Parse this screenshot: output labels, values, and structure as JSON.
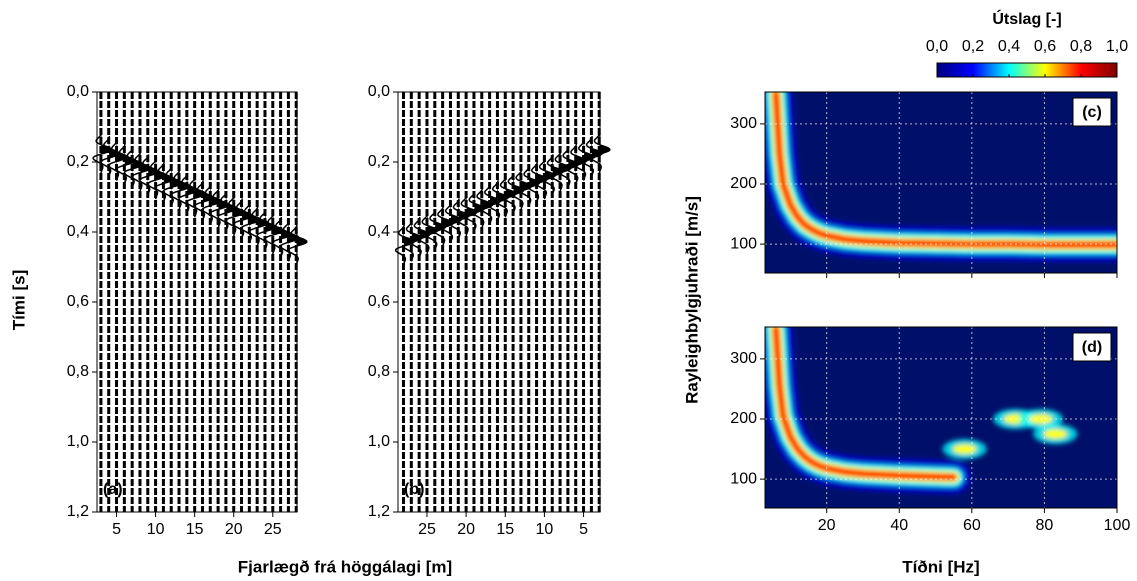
{
  "figure": {
    "seismic_x_label": "Fjarlægð frá höggálagi [m]",
    "seismic_y_label": "Tími [s]",
    "dispersion_x_label": "Tíðni [Hz]",
    "dispersion_y_label": "Rayleighbylgjuhraði [m/s]",
    "colorbar": {
      "title": "Útslag [-]",
      "lim": [
        0,
        1
      ],
      "ticks": [
        {
          "value": 0,
          "label": "0,0"
        },
        {
          "value": 0.2,
          "label": "0,2"
        },
        {
          "value": 0.4,
          "label": "0,4"
        },
        {
          "value": 0.6,
          "label": "0,6"
        },
        {
          "value": 0.8,
          "label": "0,8"
        },
        {
          "value": 1,
          "label": "1,0"
        }
      ],
      "colormap": [
        "#00007f",
        "#0000ff",
        "#00ffff",
        "#ffff00",
        "#ff0000",
        "#7f0000"
      ]
    }
  },
  "chart_data": [
    {
      "type": "seismogram",
      "panel_label": "(a)",
      "xlim": [
        2.5,
        28.1
      ],
      "ylim": [
        0,
        1.2
      ],
      "xticks": [
        5,
        10,
        15,
        20,
        25
      ],
      "yticks": [
        {
          "value": 0,
          "label": "0,0"
        },
        {
          "value": 0.2,
          "label": "0,2"
        },
        {
          "value": 0.4,
          "label": "0,4"
        },
        {
          "value": 0.6,
          "label": "0,6"
        },
        {
          "value": 0.8,
          "label": "0,8"
        },
        {
          "value": 1,
          "label": "1,0"
        },
        {
          "value": 1.2,
          "label": "1,2"
        }
      ],
      "offsets": [
        3,
        4,
        5,
        6,
        7,
        8,
        9,
        10,
        11,
        12,
        13,
        14,
        15,
        16,
        17,
        18,
        19,
        20,
        21,
        22,
        23,
        24,
        25,
        26,
        27,
        28
      ],
      "arrival_times": [
        0.15,
        0.161,
        0.171,
        0.182,
        0.192,
        0.203,
        0.213,
        0.224,
        0.234,
        0.245,
        0.255,
        0.266,
        0.276,
        0.287,
        0.297,
        0.308,
        0.318,
        0.329,
        0.339,
        0.35,
        0.36,
        0.371,
        0.381,
        0.392,
        0.402,
        0.413
      ]
    },
    {
      "type": "seismogram",
      "panel_label": "(b)",
      "xlim": [
        28.7,
        2.9
      ],
      "ylim": [
        0,
        1.2
      ],
      "xticks": [
        25,
        20,
        15,
        10,
        5
      ],
      "yticks": [
        {
          "value": 0,
          "label": "0,0"
        },
        {
          "value": 0.2,
          "label": "0,2"
        },
        {
          "value": 0.4,
          "label": "0,4"
        },
        {
          "value": 0.6,
          "label": "0,6"
        },
        {
          "value": 0.8,
          "label": "0,8"
        },
        {
          "value": 1,
          "label": "1,0"
        },
        {
          "value": 1.2,
          "label": "1,2"
        }
      ],
      "offsets": [
        3,
        4,
        5,
        6,
        7,
        8,
        9,
        10,
        11,
        12,
        13,
        14,
        15,
        16,
        17,
        18,
        19,
        20,
        21,
        22,
        23,
        24,
        25,
        26,
        27,
        28
      ],
      "arrival_times": [
        0.15,
        0.161,
        0.171,
        0.182,
        0.192,
        0.203,
        0.213,
        0.224,
        0.234,
        0.245,
        0.255,
        0.266,
        0.276,
        0.287,
        0.297,
        0.308,
        0.318,
        0.329,
        0.339,
        0.35,
        0.36,
        0.371,
        0.381,
        0.392,
        0.402,
        0.413
      ]
    },
    {
      "type": "heatmap",
      "panel_label": "(c)",
      "xlim": [
        3,
        100
      ],
      "ylim": [
        52,
        353
      ],
      "xticks": [
        20,
        40,
        60,
        80,
        100
      ],
      "yticks": [
        100,
        200,
        300
      ],
      "grid": true,
      "ridge": {
        "x": [
          6,
          7,
          8,
          10,
          12,
          14,
          16,
          18,
          20,
          25,
          30,
          40,
          50,
          60,
          70,
          80,
          90,
          100
        ],
        "y": [
          350,
          250,
          200,
          165,
          145,
          132,
          124,
          118,
          114,
          108,
          105,
          102,
          101,
          100,
          100,
          99,
          99,
          99
        ]
      },
      "spots": {
        "x": [],
        "y": []
      }
    },
    {
      "type": "heatmap",
      "panel_label": "(d)",
      "xlim": [
        3,
        100
      ],
      "ylim": [
        52,
        353
      ],
      "xticks": [
        20,
        40,
        60,
        80,
        100
      ],
      "yticks": [
        100,
        200,
        300
      ],
      "grid": true,
      "ridge": {
        "x": [
          6,
          7,
          8,
          10,
          12,
          14,
          16,
          18,
          20,
          25,
          30,
          40,
          50,
          55
        ],
        "y": [
          350,
          255,
          205,
          170,
          150,
          137,
          128,
          122,
          118,
          112,
          109,
          106,
          104,
          103
        ]
      },
      "spots": {
        "x": [
          58,
          72,
          79,
          83
        ],
        "y": [
          150,
          200,
          200,
          175
        ]
      }
    }
  ]
}
